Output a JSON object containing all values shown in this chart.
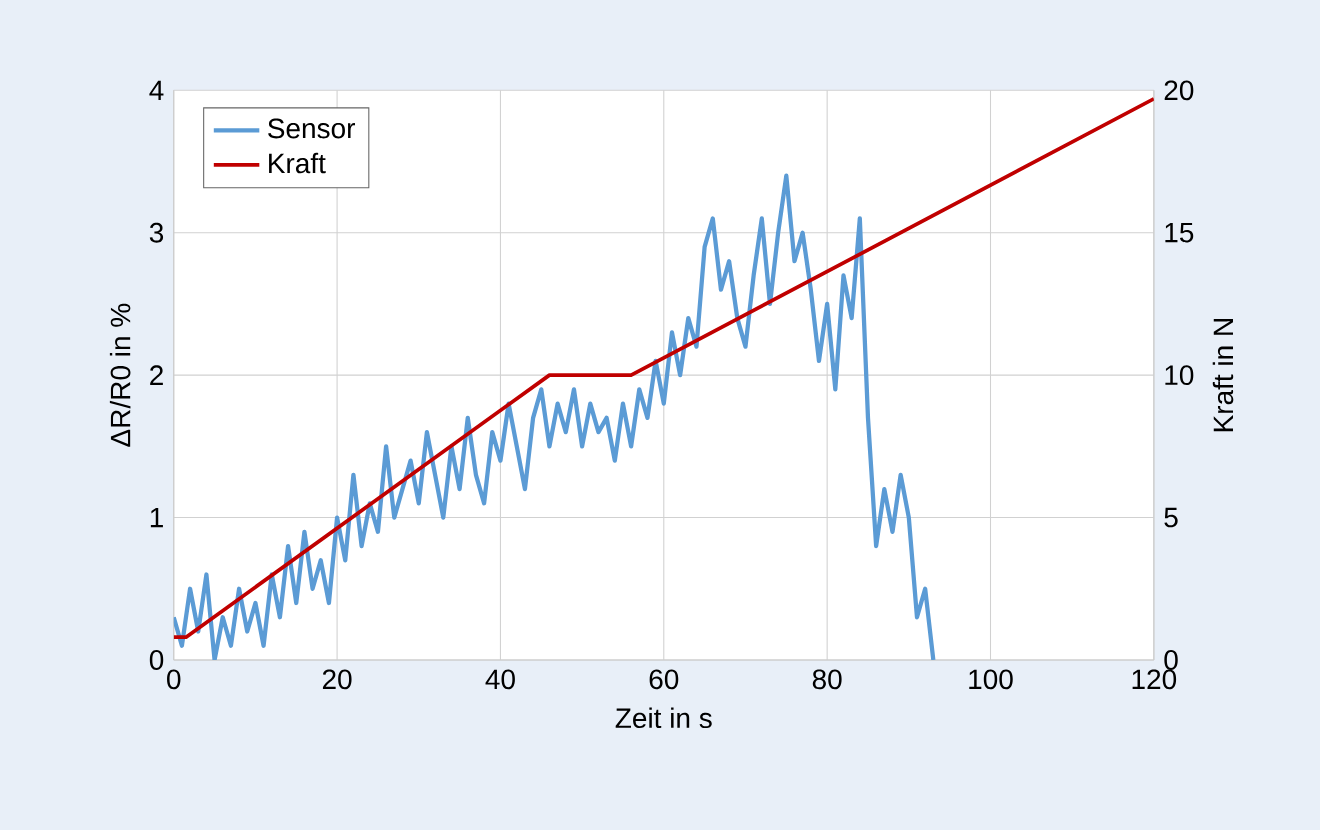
{
  "chart_data": {
    "type": "line",
    "xlabel": "Zeit in s",
    "ylabel": "ΔR/R0 in %",
    "y2label": "Kraft in N",
    "xlim": [
      0,
      120
    ],
    "xticks": [
      0,
      20,
      40,
      60,
      80,
      100,
      120
    ],
    "ylim": [
      0,
      4
    ],
    "yticks": [
      0,
      1,
      2,
      3,
      4
    ],
    "y2lim": [
      0,
      20
    ],
    "y2ticks": [
      0,
      5,
      10,
      15,
      20
    ],
    "grid": true,
    "legend": "top left",
    "marker": "none",
    "series": [
      {
        "name": "Sensor",
        "color": "#5b9bd5",
        "x": [
          0,
          1,
          2,
          3,
          4,
          5,
          6,
          7,
          8,
          9,
          10,
          11,
          12,
          13,
          14,
          15,
          16,
          17,
          18,
          19,
          20,
          21,
          22,
          23,
          24,
          25,
          26,
          27,
          28,
          29,
          30,
          31,
          32,
          33,
          34,
          35,
          36,
          37,
          38,
          39,
          40,
          41,
          42,
          43,
          44,
          45,
          46,
          47,
          48,
          49,
          50,
          51,
          52,
          53,
          54,
          55,
          56,
          57,
          58,
          59,
          60,
          61,
          62,
          63,
          64,
          65,
          66,
          67,
          68,
          69,
          70,
          71,
          72,
          73,
          74,
          75,
          76,
          77,
          78,
          79,
          80,
          81,
          82,
          83,
          84,
          85,
          86,
          87,
          88,
          89,
          90,
          91,
          92,
          93
        ],
        "values": [
          0.3,
          0.1,
          0.5,
          0.2,
          0.6,
          0,
          0.3,
          0.1,
          0.5,
          0.2,
          0.4,
          0.1,
          0.6,
          0.3,
          0.8,
          0.4,
          0.9,
          0.5,
          0.7,
          0.4,
          1.0,
          0.7,
          1.3,
          0.8,
          1.1,
          0.9,
          1.5,
          1.0,
          1.2,
          1.4,
          1.1,
          1.6,
          1.3,
          1.0,
          1.5,
          1.2,
          1.7,
          1.3,
          1.1,
          1.6,
          1.4,
          1.8,
          1.5,
          1.2,
          1.7,
          1.9,
          1.5,
          1.8,
          1.6,
          1.9,
          1.5,
          1.8,
          1.6,
          1.7,
          1.4,
          1.8,
          1.5,
          1.9,
          1.7,
          2.1,
          1.8,
          2.3,
          2.0,
          2.4,
          2.2,
          2.9,
          3.1,
          2.6,
          2.8,
          2.4,
          2.2,
          2.7,
          3.1,
          2.5,
          3.0,
          3.4,
          2.8,
          3.0,
          2.6,
          2.1,
          2.5,
          1.9,
          2.7,
          2.4,
          3.1,
          1.7,
          0.8,
          1.2,
          0.9,
          1.3,
          1.0,
          0.3,
          0.5,
          0
        ]
      },
      {
        "name": "Kraft",
        "color": "#c00000",
        "axis": "y2",
        "x": [
          0,
          1.5,
          46,
          56,
          120
        ],
        "values": [
          0.8,
          0.8,
          10,
          10,
          19.7
        ]
      }
    ]
  }
}
